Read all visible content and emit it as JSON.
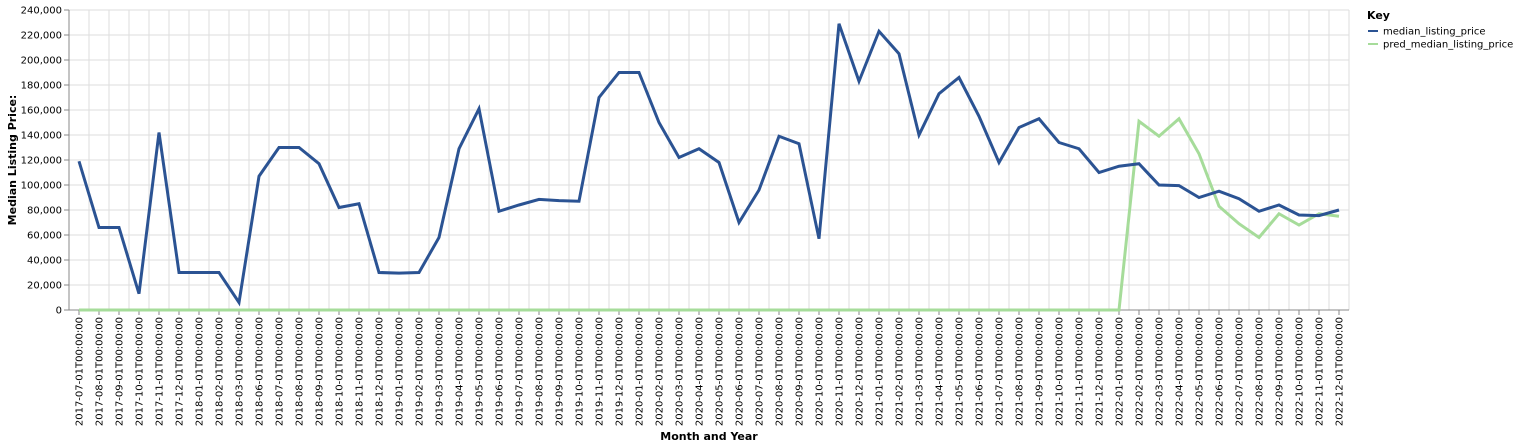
{
  "chart_data": {
    "type": "line",
    "title": "",
    "xlabel": "Month and Year",
    "ylabel": "Median Listing Price:",
    "ylim": [
      0,
      240000
    ],
    "yticks": [
      0,
      20000,
      40000,
      60000,
      80000,
      100000,
      120000,
      140000,
      160000,
      180000,
      200000,
      220000,
      240000
    ],
    "ytick_labels": [
      "0",
      "20,000",
      "40,000",
      "60,000",
      "80,000",
      "100,000",
      "120,000",
      "140,000",
      "160,000",
      "180,000",
      "200,000",
      "220,000",
      "240,000"
    ],
    "grid": true,
    "legend": {
      "title": "Key",
      "position": "top-right"
    },
    "colors": {
      "median_listing_price": "#2b5393",
      "pred_median_listing_price": "#a6dc9a"
    },
    "categories": [
      "2017-07-01T00:00:00",
      "2017-08-01T00:00:00",
      "2017-09-01T00:00:00",
      "2017-10-01T00:00:00",
      "2017-11-01T00:00:00",
      "2017-12-01T00:00:00",
      "2018-01-01T00:00:00",
      "2018-02-01T00:00:00",
      "2018-03-01T00:00:00",
      "2018-06-01T00:00:00",
      "2018-07-01T00:00:00",
      "2018-08-01T00:00:00",
      "2018-09-01T00:00:00",
      "2018-10-01T00:00:00",
      "2018-11-01T00:00:00",
      "2018-12-01T00:00:00",
      "2019-01-01T00:00:00",
      "2019-02-01T00:00:00",
      "2019-03-01T00:00:00",
      "2019-04-01T00:00:00",
      "2019-05-01T00:00:00",
      "2019-06-01T00:00:00",
      "2019-07-01T00:00:00",
      "2019-08-01T00:00:00",
      "2019-09-01T00:00:00",
      "2019-10-01T00:00:00",
      "2019-11-01T00:00:00",
      "2019-12-01T00:00:00",
      "2020-01-01T00:00:00",
      "2020-02-01T00:00:00",
      "2020-03-01T00:00:00",
      "2020-04-01T00:00:00",
      "2020-05-01T00:00:00",
      "2020-06-01T00:00:00",
      "2020-07-01T00:00:00",
      "2020-08-01T00:00:00",
      "2020-09-01T00:00:00",
      "2020-10-01T00:00:00",
      "2020-11-01T00:00:00",
      "2020-12-01T00:00:00",
      "2021-01-01T00:00:00",
      "2021-02-01T00:00:00",
      "2021-03-01T00:00:00",
      "2021-04-01T00:00:00",
      "2021-05-01T00:00:00",
      "2021-06-01T00:00:00",
      "2021-07-01T00:00:00",
      "2021-08-01T00:00:00",
      "2021-09-01T00:00:00",
      "2021-10-01T00:00:00",
      "2021-11-01T00:00:00",
      "2021-12-01T00:00:00",
      "2022-01-01T00:00:00",
      "2022-02-01T00:00:00",
      "2022-03-01T00:00:00",
      "2022-04-01T00:00:00",
      "2022-05-01T00:00:00",
      "2022-06-01T00:00:00",
      "2022-07-01T00:00:00",
      "2022-08-01T00:00:00",
      "2022-09-01T00:00:00",
      "2022-10-01T00:00:00",
      "2022-11-01T00:00:00",
      "2022-12-01T00:00:00"
    ],
    "series": [
      {
        "name": "median_listing_price",
        "values": [
          119000,
          66000,
          66000,
          13000,
          142000,
          30000,
          30000,
          30000,
          6000,
          107000,
          130000,
          130000,
          117000,
          82000,
          85000,
          30000,
          29500,
          30000,
          58000,
          129000,
          161000,
          79000,
          84000,
          88500,
          87500,
          87000,
          170000,
          190000,
          190000,
          150000,
          122000,
          129000,
          118000,
          70000,
          96000,
          139000,
          133000,
          57000,
          229000,
          183000,
          223000,
          205000,
          140000,
          173000,
          186000,
          155000,
          118000,
          146000,
          153000,
          134000,
          129000,
          110000,
          115000,
          117000,
          100000,
          99500,
          90000,
          95000,
          89000,
          79000,
          84000,
          76000,
          75500,
          80000
        ]
      },
      {
        "name": "pred_median_listing_price",
        "values": [
          0,
          0,
          0,
          0,
          0,
          0,
          0,
          0,
          0,
          0,
          0,
          0,
          0,
          0,
          0,
          0,
          0,
          0,
          0,
          0,
          0,
          0,
          0,
          0,
          0,
          0,
          0,
          0,
          0,
          0,
          0,
          0,
          0,
          0,
          0,
          0,
          0,
          0,
          0,
          0,
          0,
          0,
          0,
          0,
          0,
          0,
          0,
          0,
          0,
          0,
          0,
          0,
          0,
          151000,
          139000,
          153000,
          125000,
          83000,
          69000,
          58000,
          77000,
          68000,
          77000,
          75000
        ]
      }
    ]
  }
}
